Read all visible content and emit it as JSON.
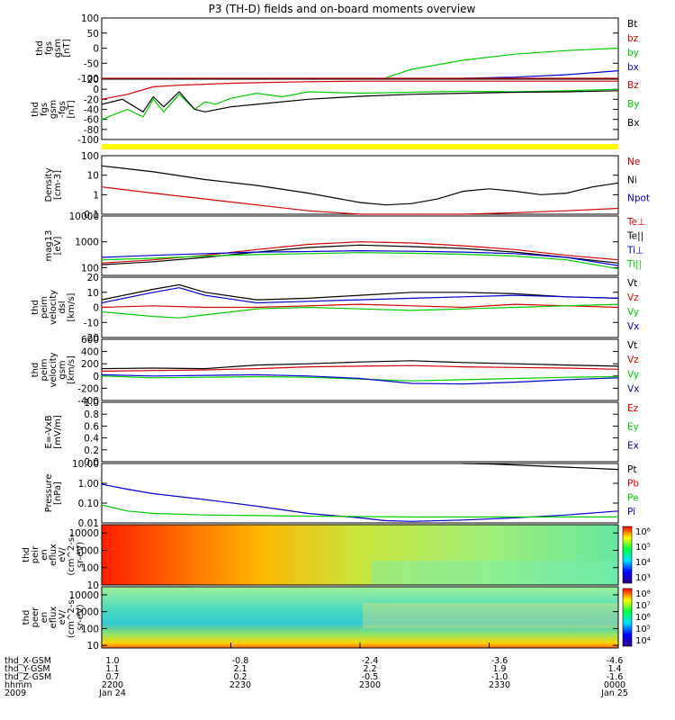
{
  "title": "P3 (TH-D) fields and on-board moments overview",
  "time_axis": {
    "rows": [
      {
        "label": "thd_X-GSM",
        "values": [
          "1.0",
          "-0.8",
          "-2.4",
          "-3.6",
          "-4.6"
        ]
      },
      {
        "label": "thd_Y-GSM",
        "values": [
          "1.1",
          "2.1",
          "2.2",
          "1.9",
          "1.4"
        ]
      },
      {
        "label": "thd_Z-GSM",
        "values": [
          "0.7",
          "0.2",
          "-0.5",
          "-1.0",
          "-1.6"
        ]
      },
      {
        "label": "hhmm",
        "values": [
          "2200",
          "2230",
          "2300",
          "2330",
          "0000"
        ]
      },
      {
        "label": "2009",
        "values": [
          "Jan 24",
          "",
          "",
          "",
          "Jan 25"
        ]
      }
    ]
  },
  "chart_data": [
    {
      "id": "fgs",
      "type": "line",
      "ylabel": [
        "thd",
        "fgs",
        "gsm",
        "[nT]"
      ],
      "ylim": [
        -100,
        100
      ],
      "ticks": [
        "100",
        "50",
        "0",
        "-50",
        "-100"
      ],
      "tick_values": [
        100,
        50,
        0,
        -50,
        -100
      ],
      "legend": [
        {
          "name": "Bt",
          "color": "#000000"
        },
        {
          "name": "bz",
          "color": "#d40000"
        },
        {
          "name": "by",
          "color": "#00cc00"
        },
        {
          "name": "bx",
          "color": "#0000d0"
        }
      ],
      "series": [
        {
          "name": "by",
          "color": "#00cc00",
          "x": [
            0.0,
            0.5,
            0.55,
            0.6,
            0.7,
            0.8,
            0.9,
            1.0
          ],
          "y": [
            null,
            null,
            -98,
            -70,
            -40,
            -20,
            -8,
            0
          ]
        },
        {
          "name": "bx",
          "color": "#0000d0",
          "x": [
            0.0,
            0.7,
            0.8,
            0.9,
            1.0
          ],
          "y": [
            null,
            -100,
            -96,
            -88,
            -75
          ]
        },
        {
          "name": "bz",
          "color": "#d40000",
          "x": [
            0.0,
            1.0
          ],
          "y": [
            -100,
            -100
          ]
        }
      ]
    },
    {
      "id": "fgs2",
      "type": "line",
      "ylabel": [
        "thd",
        "fgs",
        "gsm",
        "-fgs",
        "[nT]"
      ],
      "ylim": [
        -100,
        20
      ],
      "ticks": [
        "20",
        "0",
        "-20",
        "-40",
        "-60",
        "-80",
        "-100"
      ],
      "tick_values": [
        20,
        0,
        -20,
        -40,
        -60,
        -80,
        -100
      ],
      "legend": [
        {
          "name": "Bz",
          "color": "#d40000"
        },
        {
          "name": "By",
          "color": "#00cc00"
        },
        {
          "name": "Bx",
          "color": "#000000"
        }
      ],
      "series": [
        {
          "name": "Bz",
          "color": "#d40000",
          "x": [
            0.0,
            0.05,
            0.1,
            0.15,
            0.2,
            0.25,
            0.3,
            0.35,
            0.4,
            0.5,
            0.6,
            0.7,
            0.8,
            0.9,
            1.0
          ],
          "y": [
            -20,
            -10,
            5,
            8,
            10,
            12,
            13,
            14,
            15,
            16,
            16,
            16,
            16,
            16,
            16
          ]
        },
        {
          "name": "By",
          "color": "#00cc00",
          "x": [
            0.0,
            0.05,
            0.08,
            0.1,
            0.12,
            0.15,
            0.18,
            0.2,
            0.22,
            0.25,
            0.3,
            0.35,
            0.4,
            0.5,
            0.6,
            0.7,
            0.8,
            0.9,
            1.0
          ],
          "y": [
            -60,
            -40,
            -55,
            -20,
            -45,
            -10,
            -40,
            -25,
            -30,
            -18,
            -8,
            -15,
            -5,
            -8,
            -6,
            -4,
            -5,
            -3,
            0
          ]
        },
        {
          "name": "Bx",
          "color": "#000000",
          "x": [
            0.0,
            0.04,
            0.08,
            0.1,
            0.12,
            0.15,
            0.18,
            0.2,
            0.25,
            0.3,
            0.4,
            0.5,
            0.6,
            0.7,
            0.8,
            0.9,
            1.0
          ],
          "y": [
            -30,
            -20,
            -45,
            -15,
            -35,
            -5,
            -40,
            -45,
            -35,
            -30,
            -20,
            -14,
            -10,
            -8,
            -6,
            -5,
            -3
          ]
        }
      ]
    },
    {
      "id": "bar",
      "type": "area",
      "ylabel": [],
      "ticks": [],
      "legend": [],
      "series": [],
      "bar_color": "#ffff00"
    },
    {
      "id": "density",
      "type": "line",
      "scale": "log",
      "ylabel": [
        "Density",
        "[cm-3]"
      ],
      "ylim": [
        0.1,
        100
      ],
      "ticks": [
        "100",
        "10",
        "1",
        "0.1"
      ],
      "tick_values": [
        100,
        10,
        1,
        0.1
      ],
      "legend": [
        {
          "name": "Ne",
          "color": "#d40000"
        },
        {
          "name": "Ni",
          "color": "#000000"
        },
        {
          "name": "Npot",
          "color": "#0000d0"
        }
      ],
      "series": [
        {
          "name": "Ni",
          "color": "#000000",
          "x": [
            0.0,
            0.1,
            0.2,
            0.3,
            0.4,
            0.5,
            0.55,
            0.6,
            0.65,
            0.7,
            0.75,
            0.8,
            0.85,
            0.9,
            0.95,
            1.0
          ],
          "y": [
            30,
            15,
            6,
            3,
            1.2,
            0.4,
            0.3,
            0.35,
            0.6,
            1.5,
            2.0,
            1.5,
            1.0,
            1.2,
            2.5,
            4.0
          ]
        },
        {
          "name": "Ne",
          "color": "#d40000",
          "x": [
            0.0,
            0.1,
            0.2,
            0.3,
            0.4,
            0.5,
            0.6,
            0.7,
            0.8,
            0.9,
            1.0
          ],
          "y": [
            2.5,
            1.2,
            0.6,
            0.3,
            0.15,
            0.1,
            0.1,
            0.1,
            0.12,
            0.15,
            0.2
          ]
        }
      ]
    },
    {
      "id": "temp",
      "type": "line",
      "scale": "log",
      "ylabel": [
        "mag13",
        "[eV]"
      ],
      "ylim": [
        50,
        10000
      ],
      "ticks": [
        "10000",
        "1000",
        "100"
      ],
      "tick_values": [
        10000,
        1000,
        100
      ],
      "legend": [
        {
          "name": "Te⊥",
          "color": "#d40000"
        },
        {
          "name": "Te||",
          "color": "#000000"
        },
        {
          "name": "Ti⊥",
          "color": "#0000d0"
        },
        {
          "name": "Ti||",
          "color": "#00cc00"
        }
      ],
      "series": [
        {
          "name": "Te⊥",
          "color": "#d40000",
          "x": [
            0.0,
            0.1,
            0.2,
            0.3,
            0.4,
            0.5,
            0.6,
            0.7,
            0.8,
            0.9,
            1.0
          ],
          "y": [
            150,
            200,
            300,
            500,
            800,
            1000,
            900,
            700,
            500,
            300,
            200
          ]
        },
        {
          "name": "Te||",
          "color": "#000000",
          "x": [
            0.0,
            0.1,
            0.2,
            0.3,
            0.4,
            0.5,
            0.6,
            0.7,
            0.8,
            0.9,
            1.0
          ],
          "y": [
            130,
            170,
            250,
            400,
            600,
            750,
            650,
            550,
            400,
            250,
            150
          ]
        },
        {
          "name": "Ti⊥",
          "color": "#0000d0",
          "x": [
            0.0,
            0.1,
            0.2,
            0.3,
            0.4,
            0.5,
            0.6,
            0.7,
            0.8,
            0.9,
            1.0
          ],
          "y": [
            250,
            300,
            350,
            400,
            420,
            450,
            430,
            400,
            350,
            250,
            120
          ]
        },
        {
          "name": "Ti||",
          "color": "#00cc00",
          "x": [
            0.0,
            0.1,
            0.2,
            0.3,
            0.4,
            0.5,
            0.6,
            0.7,
            0.8,
            0.9,
            1.0
          ],
          "y": [
            200,
            230,
            280,
            320,
            350,
            380,
            360,
            330,
            280,
            200,
            90
          ]
        }
      ]
    },
    {
      "id": "vel_dsl",
      "type": "line",
      "ylabel": [
        "thd",
        "peim",
        "velocity",
        "dsl",
        "[km/s]"
      ],
      "ylim": [
        -20,
        20
      ],
      "ticks": [
        "20",
        "10",
        "0",
        "-10",
        "-20"
      ],
      "tick_values": [
        20,
        10,
        0,
        -10,
        -20
      ],
      "legend": [
        {
          "name": "Vt",
          "color": "#000000"
        },
        {
          "name": "Vz",
          "color": "#d40000"
        },
        {
          "name": "Vy",
          "color": "#00cc00"
        },
        {
          "name": "Vx",
          "color": "#0000d0"
        }
      ],
      "series": [
        {
          "name": "Vt",
          "color": "#000000",
          "x": [
            0.0,
            0.1,
            0.15,
            0.2,
            0.3,
            0.4,
            0.5,
            0.6,
            0.7,
            0.8,
            0.9,
            1.0
          ],
          "y": [
            5,
            12,
            15,
            10,
            5,
            6,
            8,
            10,
            10,
            9,
            7,
            6
          ]
        },
        {
          "name": "Vx",
          "color": "#0000d0",
          "x": [
            0.0,
            0.1,
            0.15,
            0.2,
            0.3,
            0.4,
            0.5,
            0.6,
            0.7,
            0.8,
            0.9,
            1.0
          ],
          "y": [
            3,
            10,
            13,
            8,
            3,
            4,
            5,
            6,
            7,
            8,
            7,
            6
          ]
        },
        {
          "name": "Vz",
          "color": "#d40000",
          "x": [
            0.0,
            0.1,
            0.2,
            0.3,
            0.4,
            0.5,
            0.6,
            0.7,
            0.8,
            0.9,
            1.0
          ],
          "y": [
            0,
            1,
            0,
            0,
            1,
            2,
            1,
            0,
            2,
            1,
            0
          ]
        },
        {
          "name": "Vy",
          "color": "#00cc00",
          "x": [
            0.0,
            0.1,
            0.15,
            0.2,
            0.3,
            0.4,
            0.5,
            0.6,
            0.7,
            0.8,
            0.9,
            1.0
          ],
          "y": [
            -3,
            -6,
            -7,
            -5,
            -1,
            0,
            -1,
            -2,
            -1,
            0,
            1,
            2
          ]
        }
      ]
    },
    {
      "id": "vel_gsm",
      "type": "line",
      "ylabel": [
        "thd",
        "peim",
        "velocity",
        "gsm",
        "[km/s]"
      ],
      "ylim": [
        -400,
        600
      ],
      "ticks": [
        "600",
        "400",
        "200",
        "0",
        "-200",
        "-400"
      ],
      "tick_values": [
        600,
        400,
        200,
        0,
        -200,
        -400
      ],
      "legend": [
        {
          "name": "Vt",
          "color": "#000000"
        },
        {
          "name": "Vz",
          "color": "#d40000"
        },
        {
          "name": "Vy",
          "color": "#00cc00"
        },
        {
          "name": "Vx",
          "color": "#0000d0"
        }
      ],
      "series": [
        {
          "name": "Vt",
          "color": "#000000",
          "x": [
            0.0,
            0.1,
            0.2,
            0.3,
            0.4,
            0.5,
            0.6,
            0.7,
            0.8,
            0.9,
            1.0
          ],
          "y": [
            120,
            130,
            120,
            180,
            200,
            230,
            250,
            220,
            200,
            180,
            160
          ]
        },
        {
          "name": "Vz",
          "color": "#d40000",
          "x": [
            0.0,
            0.1,
            0.2,
            0.3,
            0.4,
            0.5,
            0.6,
            0.7,
            0.8,
            0.9,
            1.0
          ],
          "y": [
            80,
            90,
            100,
            120,
            150,
            160,
            170,
            150,
            140,
            130,
            110
          ]
        },
        {
          "name": "Vy",
          "color": "#00cc00",
          "x": [
            0.0,
            0.1,
            0.2,
            0.3,
            0.4,
            0.5,
            0.6,
            0.7,
            0.8,
            0.9,
            1.0
          ],
          "y": [
            0,
            -30,
            -20,
            -10,
            -20,
            -50,
            -80,
            -60,
            -40,
            -20,
            -10
          ]
        },
        {
          "name": "Vx",
          "color": "#0000d0",
          "x": [
            0.0,
            0.1,
            0.2,
            0.3,
            0.4,
            0.5,
            0.6,
            0.7,
            0.8,
            0.9,
            1.0
          ],
          "y": [
            20,
            0,
            10,
            20,
            0,
            -40,
            -120,
            -130,
            -100,
            -60,
            -30
          ]
        }
      ]
    },
    {
      "id": "efield",
      "type": "line",
      "ylabel": [
        "E=-VxB",
        "[mV/m]"
      ],
      "ylim": [
        0,
        1
      ],
      "ticks": [
        "1.0",
        "0.8",
        "0.6",
        "0.4",
        "0.2",
        "0.0"
      ],
      "tick_values": [
        1.0,
        0.8,
        0.6,
        0.4,
        0.2,
        0.0
      ],
      "legend": [
        {
          "name": "Ez",
          "color": "#d40000"
        },
        {
          "name": "Ey",
          "color": "#00cc00"
        },
        {
          "name": "Ex",
          "color": "#0000d0"
        }
      ],
      "series": []
    },
    {
      "id": "pressure",
      "type": "line",
      "scale": "log",
      "ylabel": [
        "Pressure",
        "[nPa]"
      ],
      "ylim": [
        0.01,
        10
      ],
      "ticks": [
        "10.00",
        "1.00",
        "0.10",
        "0.01"
      ],
      "tick_values": [
        10,
        1,
        0.1,
        0.01
      ],
      "legend": [
        {
          "name": "Pt",
          "color": "#000000"
        },
        {
          "name": "Pb",
          "color": "#d40000"
        },
        {
          "name": "Pe",
          "color": "#00cc00"
        },
        {
          "name": "Pi",
          "color": "#0000d0"
        }
      ],
      "series": [
        {
          "name": "Pt",
          "color": "#000000",
          "x": [
            0.0,
            0.7,
            0.75,
            0.8,
            0.9,
            1.0
          ],
          "y": [
            null,
            10,
            9.5,
            8.5,
            6.5,
            5.0
          ]
        },
        {
          "name": "Pi",
          "color": "#0000d0",
          "x": [
            0.0,
            0.05,
            0.1,
            0.2,
            0.3,
            0.4,
            0.5,
            0.55,
            0.6,
            0.7,
            0.8,
            0.9,
            1.0
          ],
          "y": [
            0.9,
            0.5,
            0.3,
            0.15,
            0.07,
            0.03,
            0.018,
            0.013,
            0.012,
            0.014,
            0.018,
            0.025,
            0.04
          ]
        },
        {
          "name": "Pe",
          "color": "#00cc00",
          "x": [
            0.0,
            0.05,
            0.1,
            0.2,
            0.4,
            0.6,
            0.8,
            1.0
          ],
          "y": [
            0.08,
            0.04,
            0.03,
            0.025,
            0.022,
            0.02,
            0.02,
            0.02
          ]
        }
      ]
    },
    {
      "id": "eflux_i",
      "type": "heatmap",
      "scale": "log",
      "ylabel": [
        "thd",
        "peir",
        "en",
        "eflux",
        "eV/",
        "(cm^2-s-",
        "sr-eV)"
      ],
      "ylim": [
        10,
        30000
      ],
      "ticks": [
        "10000",
        "1000",
        "100",
        "10"
      ],
      "tick_values": [
        10000,
        1000,
        100,
        10
      ],
      "colorbar_ticks": [
        "10⁶",
        "10⁵",
        "10⁴",
        "10³"
      ]
    },
    {
      "id": "eflux_e",
      "type": "heatmap",
      "scale": "log",
      "ylabel": [
        "thd",
        "peer",
        "en",
        "eflux",
        "eV/",
        "(cm^2-s-",
        "sr-eV)"
      ],
      "ylim": [
        7,
        30000
      ],
      "ticks": [
        "10000",
        "1000",
        "100",
        "10"
      ],
      "tick_values": [
        10000,
        1000,
        100,
        10
      ],
      "colorbar_ticks": [
        "10⁸",
        "10⁷",
        "10⁶",
        "10⁵",
        "10⁴"
      ]
    }
  ]
}
